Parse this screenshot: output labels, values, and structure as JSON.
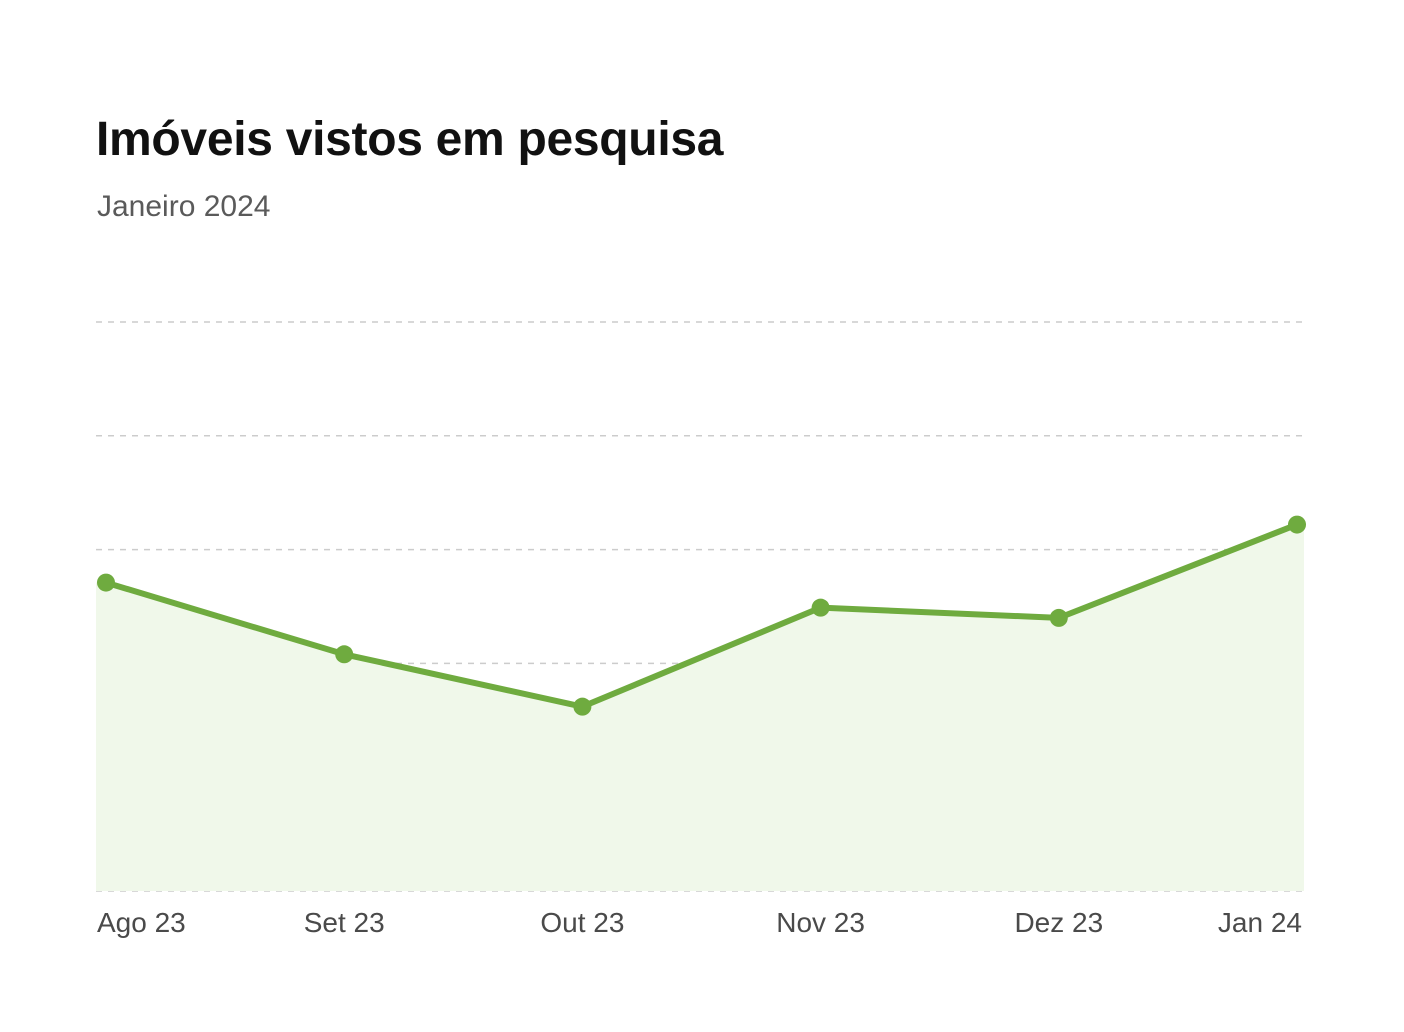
{
  "chart_data": {
    "type": "area",
    "title": "Imóveis vistos em pesquisa",
    "subtitle": "Janeiro 2024",
    "categories": [
      "Ago 23",
      "Set 23",
      "Out 23",
      "Nov 23",
      "Dez 23",
      "Jan 24"
    ],
    "series": [
      {
        "values": [
          2.71,
          2.08,
          1.62,
          2.49,
          2.4,
          3.22
        ]
      }
    ],
    "ylim": [
      0,
      5
    ],
    "grid": true,
    "legend": "none",
    "colors": {
      "line": "#6fab3f",
      "fill": "#f0f8ea",
      "grid": "#cccccc"
    }
  }
}
